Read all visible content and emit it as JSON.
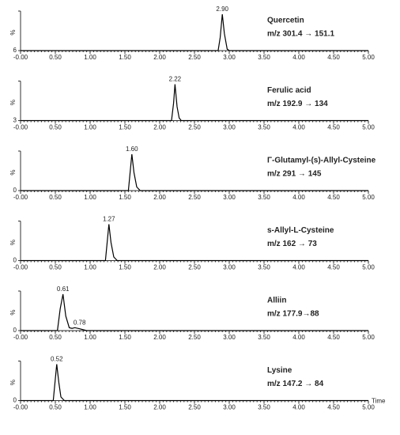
{
  "chart_data": [
    {
      "type": "line",
      "title": "Quercetin",
      "subtitle": "m/z 301.4 → 151.1",
      "ylabel": "%",
      "color": "#000000",
      "x": [
        0,
        2.84,
        2.87,
        2.9,
        2.93,
        2.97,
        3.0,
        5
      ],
      "values": [
        6,
        6,
        40,
        100,
        50,
        10,
        6,
        6
      ],
      "annotations": [
        {
          "x": 2.9,
          "label": "2.90"
        }
      ],
      "xlim": [
        0,
        5
      ],
      "ylim": [
        6,
        100
      ],
      "yticks": [
        6
      ],
      "xticks": [
        {
          "value": 0,
          "label": "-0.00"
        },
        {
          "value": 0.5,
          "label": "0.50"
        },
        {
          "value": 1,
          "label": "1.00"
        },
        {
          "value": 1.5,
          "label": "1.50"
        },
        {
          "value": 2,
          "label": "2.00"
        },
        {
          "value": 2.5,
          "label": "2.50"
        },
        {
          "value": 3,
          "label": "3.00"
        },
        {
          "value": 3.5,
          "label": "3.50"
        },
        {
          "value": 4,
          "label": "4.00"
        },
        {
          "value": 4.5,
          "label": "4.50"
        },
        {
          "value": 5,
          "label": "5.00"
        }
      ]
    },
    {
      "type": "line",
      "title": "Ferulic acid",
      "subtitle": "m/z 192.9 → 134",
      "ylabel": "%",
      "color": "#000000",
      "x": [
        0,
        2.17,
        2.2,
        2.22,
        2.25,
        2.28,
        2.31,
        5
      ],
      "values": [
        3,
        3,
        50,
        100,
        40,
        10,
        3,
        3
      ],
      "annotations": [
        {
          "x": 2.22,
          "label": "2.22"
        }
      ],
      "xlim": [
        0,
        5
      ],
      "ylim": [
        3,
        100
      ],
      "yticks": [
        3
      ],
      "xticks": [
        {
          "value": 0,
          "label": "-0.00"
        },
        {
          "value": 0.5,
          "label": "0.50"
        },
        {
          "value": 1,
          "label": "1.00"
        },
        {
          "value": 1.5,
          "label": "1.50"
        },
        {
          "value": 2,
          "label": "2.00"
        },
        {
          "value": 2.5,
          "label": "2.50"
        },
        {
          "value": 3,
          "label": "3.00"
        },
        {
          "value": 3.5,
          "label": "3.50"
        },
        {
          "value": 4,
          "label": "4.00"
        },
        {
          "value": 4.5,
          "label": "4.50"
        },
        {
          "value": 5,
          "label": "5.00"
        }
      ]
    },
    {
      "type": "line",
      "title": "Γ-Glutamyl-(s)-Allyl-Cysteine",
      "subtitle": "m/z 291 → 145",
      "ylabel": "%",
      "color": "#000000",
      "x": [
        0,
        1.55,
        1.58,
        1.6,
        1.63,
        1.67,
        1.72,
        5
      ],
      "values": [
        0,
        0,
        60,
        100,
        50,
        10,
        0,
        0
      ],
      "annotations": [
        {
          "x": 1.6,
          "label": "1.60"
        }
      ],
      "xlim": [
        0,
        5
      ],
      "ylim": [
        0,
        100
      ],
      "yticks": [
        0
      ],
      "xticks": [
        {
          "value": 0,
          "label": "-0.00"
        },
        {
          "value": 0.5,
          "label": "0.50"
        },
        {
          "value": 1,
          "label": "1.00"
        },
        {
          "value": 1.5,
          "label": "1.50"
        },
        {
          "value": 2,
          "label": "2.00"
        },
        {
          "value": 2.5,
          "label": "2.50"
        },
        {
          "value": 3,
          "label": "3.00"
        },
        {
          "value": 3.5,
          "label": "3.50"
        },
        {
          "value": 4,
          "label": "4.00"
        },
        {
          "value": 4.5,
          "label": "4.50"
        },
        {
          "value": 5,
          "label": "5.00"
        }
      ]
    },
    {
      "type": "line",
      "title": "s-Allyl-L-Cysteine",
      "subtitle": "m/z 162 → 73",
      "ylabel": "%",
      "color": "#000000",
      "x": [
        0,
        1.22,
        1.25,
        1.27,
        1.3,
        1.34,
        1.39,
        5
      ],
      "values": [
        0,
        0,
        60,
        100,
        50,
        10,
        0,
        0
      ],
      "annotations": [
        {
          "x": 1.27,
          "label": "1.27"
        }
      ],
      "xlim": [
        0,
        5
      ],
      "ylim": [
        0,
        100
      ],
      "yticks": [
        0
      ],
      "xticks": [
        {
          "value": 0,
          "label": "-0.00"
        },
        {
          "value": 0.5,
          "label": "0.50"
        },
        {
          "value": 1,
          "label": "1.00"
        },
        {
          "value": 1.5,
          "label": "1.50"
        },
        {
          "value": 2,
          "label": "2.00"
        },
        {
          "value": 2.5,
          "label": "2.50"
        },
        {
          "value": 3,
          "label": "3.00"
        },
        {
          "value": 3.5,
          "label": "3.50"
        },
        {
          "value": 4,
          "label": "4.00"
        },
        {
          "value": 4.5,
          "label": "4.50"
        },
        {
          "value": 5,
          "label": "5.00"
        }
      ]
    },
    {
      "type": "line",
      "title": "Alliin",
      "subtitle": "m/z 177.9→88",
      "ylabel": "%",
      "color": "#000000",
      "x": [
        0,
        0.53,
        0.57,
        0.61,
        0.65,
        0.7,
        0.74,
        0.78,
        0.85,
        0.95,
        5
      ],
      "values": [
        0,
        0,
        60,
        100,
        40,
        8,
        6,
        8,
        5,
        0,
        0
      ],
      "annotations": [
        {
          "x": 0.61,
          "label": "0.61"
        },
        {
          "x": 0.78,
          "label": "0.78"
        }
      ],
      "xlim": [
        0,
        5
      ],
      "ylim": [
        0,
        100
      ],
      "yticks": [
        0
      ],
      "xticks": [
        {
          "value": 0,
          "label": "-0.00"
        },
        {
          "value": 0.5,
          "label": "0.50"
        },
        {
          "value": 1,
          "label": "1.00"
        },
        {
          "value": 1.5,
          "label": "1.50"
        },
        {
          "value": 2,
          "label": "2.00"
        },
        {
          "value": 2.5,
          "label": "2.50"
        },
        {
          "value": 3,
          "label": "3.00"
        },
        {
          "value": 3.5,
          "label": "3.50"
        },
        {
          "value": 4,
          "label": "4.00"
        },
        {
          "value": 4.5,
          "label": "4.50"
        },
        {
          "value": 5,
          "label": "5.00"
        }
      ]
    },
    {
      "type": "line",
      "title": "Lysine",
      "subtitle": "m/z 147.2 → 84",
      "ylabel": "%",
      "xlabel": "Time",
      "color": "#000000",
      "x": [
        0,
        0.47,
        0.5,
        0.52,
        0.55,
        0.58,
        0.63,
        5
      ],
      "values": [
        0,
        0,
        60,
        100,
        50,
        10,
        0,
        0
      ],
      "annotations": [
        {
          "x": 0.52,
          "label": "0.52"
        }
      ],
      "xlim": [
        0,
        5
      ],
      "ylim": [
        0,
        100
      ],
      "yticks": [
        0
      ],
      "xticks": [
        {
          "value": 0,
          "label": "-0.00"
        },
        {
          "value": 0.5,
          "label": "0.50"
        },
        {
          "value": 1,
          "label": "1.00"
        },
        {
          "value": 1.5,
          "label": "1.50"
        },
        {
          "value": 2,
          "label": "2.00"
        },
        {
          "value": 2.5,
          "label": "2.50"
        },
        {
          "value": 3,
          "label": "3.00"
        },
        {
          "value": 3.5,
          "label": "3.50"
        },
        {
          "value": 4,
          "label": "4.00"
        },
        {
          "value": 4.5,
          "label": "4.50"
        },
        {
          "value": 5,
          "label": "5.00"
        }
      ]
    }
  ]
}
